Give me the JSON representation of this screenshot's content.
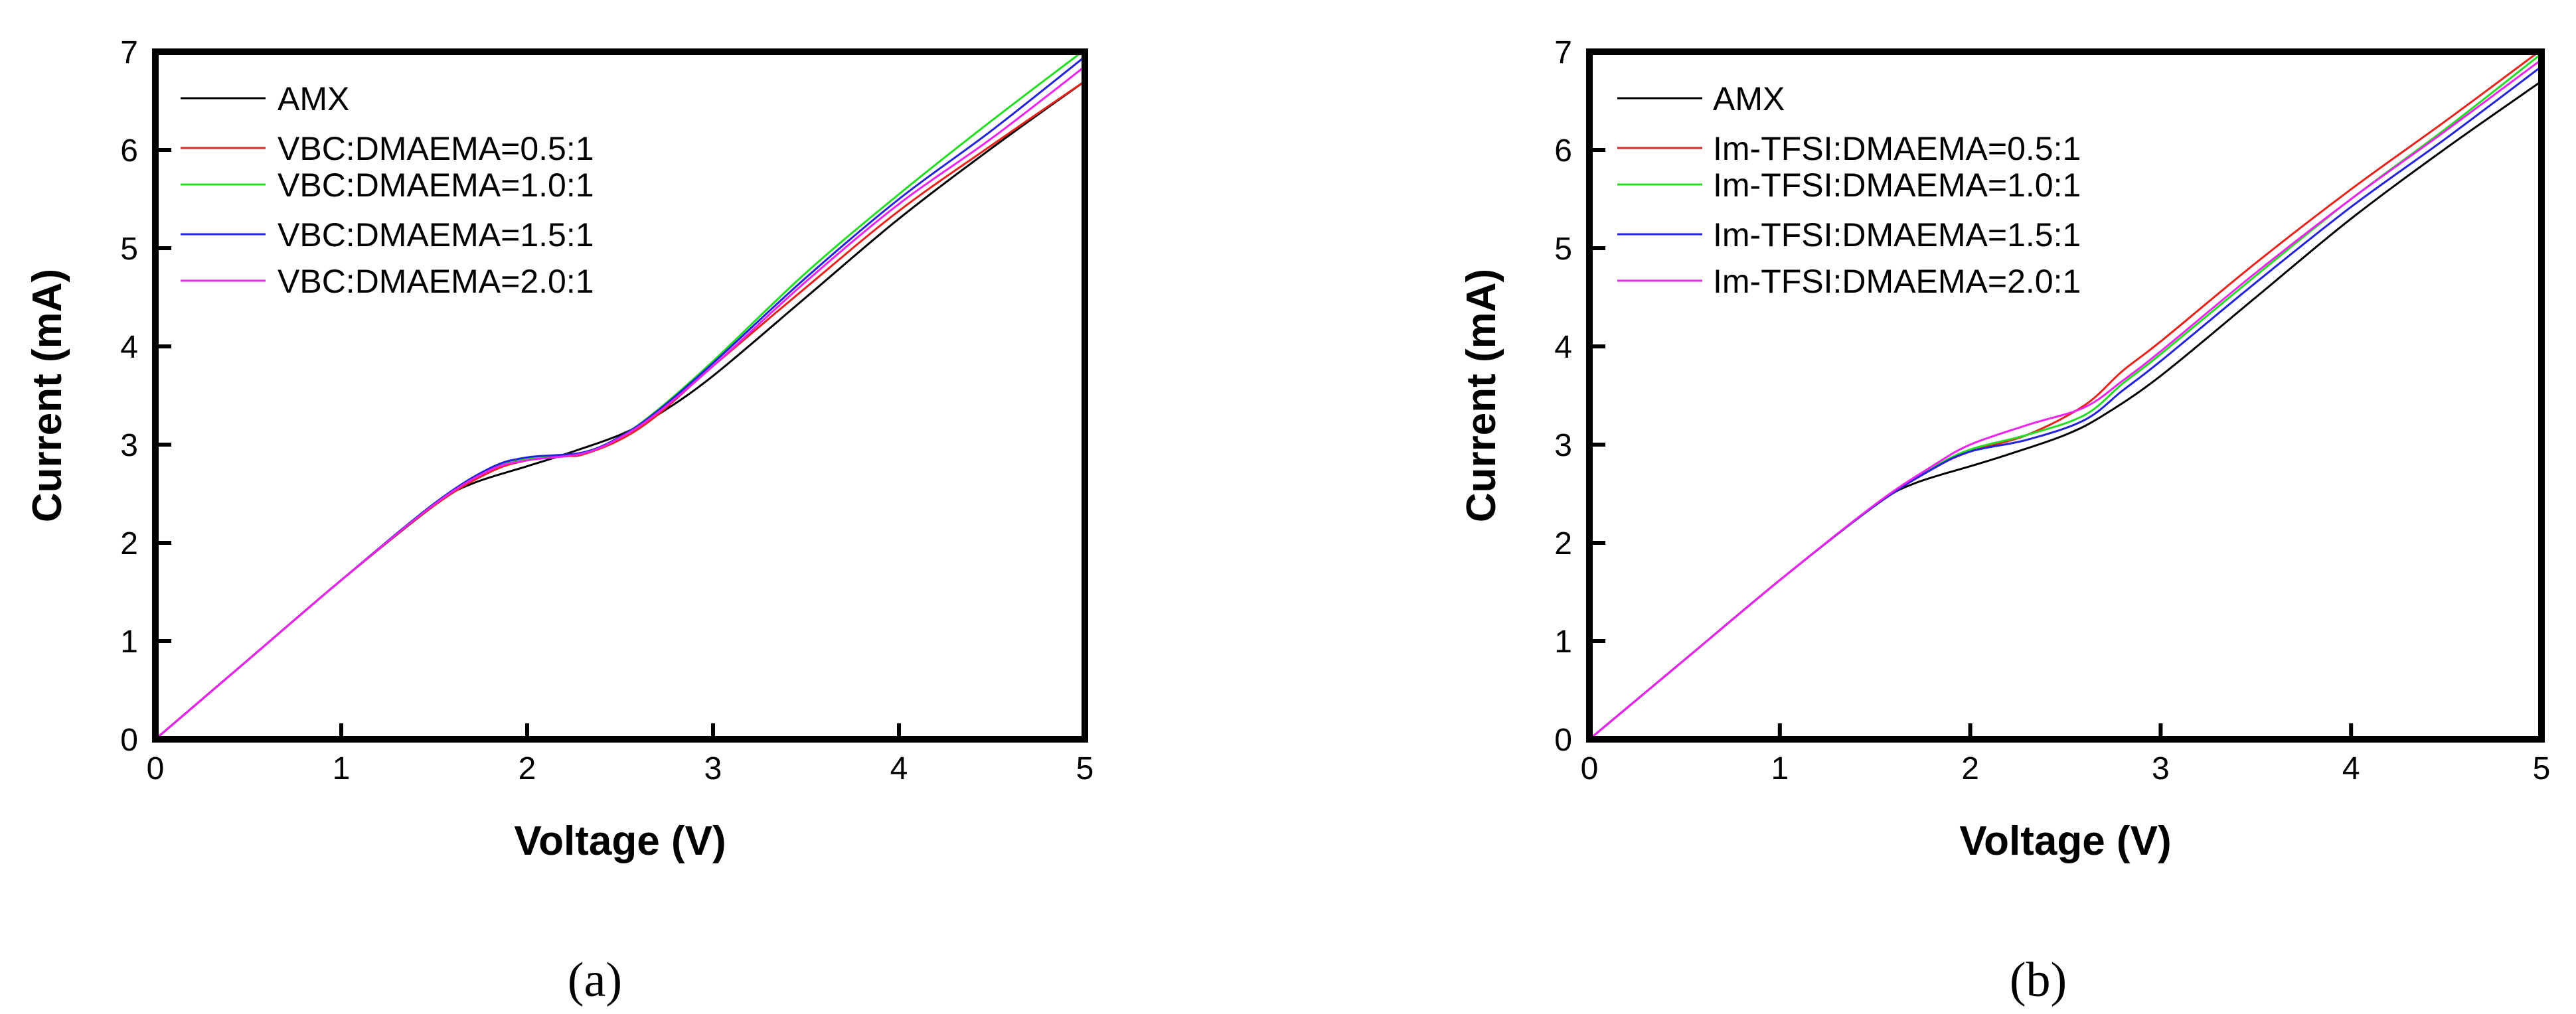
{
  "chart_data": [
    {
      "type": "line",
      "panel_label": "(a)",
      "xlabel": "Voltage (V)",
      "ylabel": "Current (mA)",
      "xlim": [
        0,
        5
      ],
      "ylim": [
        0,
        7
      ],
      "xticks": [
        0,
        1,
        2,
        3,
        4,
        5
      ],
      "yticks": [
        0,
        1,
        2,
        3,
        4,
        5,
        6,
        7
      ],
      "grid": false,
      "legend_position": "top-left",
      "series": [
        {
          "name": "AMX",
          "color": "#000000",
          "x": [
            0,
            0.5,
            1.0,
            1.5,
            1.7,
            2.0,
            2.2,
            2.5,
            2.7,
            3.0,
            3.5,
            4.0,
            4.5,
            5.0
          ],
          "y": [
            0,
            0.81,
            1.62,
            2.38,
            2.6,
            2.78,
            2.9,
            3.1,
            3.3,
            3.7,
            4.5,
            5.3,
            6.02,
            6.7
          ]
        },
        {
          "name": "VBC:DMAEMA=0.5:1",
          "color": "#e8221b",
          "x": [
            0,
            0.5,
            1.0,
            1.5,
            1.8,
            2.0,
            2.2,
            2.3,
            2.5,
            2.7,
            3.0,
            3.5,
            4.0,
            4.5,
            5.0
          ],
          "y": [
            0,
            0.81,
            1.62,
            2.38,
            2.72,
            2.84,
            2.88,
            2.9,
            3.05,
            3.3,
            3.8,
            4.6,
            5.38,
            6.05,
            6.7
          ]
        },
        {
          "name": "VBC:DMAEMA=1.0:1",
          "color": "#22dd22",
          "x": [
            0,
            0.5,
            1.0,
            1.5,
            1.8,
            2.0,
            2.3,
            2.5,
            2.7,
            3.0,
            3.5,
            4.0,
            4.5,
            5.0
          ],
          "y": [
            0,
            0.81,
            1.62,
            2.4,
            2.75,
            2.85,
            2.92,
            3.08,
            3.35,
            3.85,
            4.75,
            5.55,
            6.3,
            7.02
          ]
        },
        {
          "name": "VBC:DMAEMA=1.5:1",
          "color": "#2222dd",
          "x": [
            0,
            0.5,
            1.0,
            1.5,
            1.8,
            2.0,
            2.3,
            2.5,
            2.7,
            3.0,
            3.5,
            4.0,
            4.5,
            5.0
          ],
          "y": [
            0,
            0.81,
            1.62,
            2.4,
            2.76,
            2.87,
            2.92,
            3.08,
            3.34,
            3.83,
            4.7,
            5.5,
            6.2,
            6.95
          ]
        },
        {
          "name": "VBC:DMAEMA=2.0:1",
          "color": "#ee22ee",
          "x": [
            0,
            0.5,
            1.0,
            1.5,
            1.8,
            2.0,
            2.3,
            2.5,
            2.7,
            3.0,
            3.5,
            4.0,
            4.5,
            5.0
          ],
          "y": [
            0,
            0.81,
            1.62,
            2.39,
            2.74,
            2.84,
            2.91,
            3.07,
            3.32,
            3.8,
            4.66,
            5.45,
            6.12,
            6.85
          ]
        }
      ]
    },
    {
      "type": "line",
      "panel_label": "(b)",
      "xlabel": "Voltage (V)",
      "ylabel": "Current (mA)",
      "xlim": [
        0,
        5
      ],
      "ylim": [
        0,
        7
      ],
      "xticks": [
        0,
        1,
        2,
        3,
        4,
        5
      ],
      "yticks": [
        0,
        1,
        2,
        3,
        4,
        5,
        6,
        7
      ],
      "grid": false,
      "legend_position": "top-left",
      "series": [
        {
          "name": "AMX",
          "color": "#000000",
          "x": [
            0,
            0.5,
            1.0,
            1.5,
            1.7,
            2.0,
            2.2,
            2.5,
            2.7,
            3.0,
            3.5,
            4.0,
            4.5,
            5.0
          ],
          "y": [
            0,
            0.81,
            1.62,
            2.38,
            2.6,
            2.78,
            2.9,
            3.1,
            3.3,
            3.7,
            4.5,
            5.3,
            6.02,
            6.7
          ]
        },
        {
          "name": "Im-TFSI:DMAEMA=0.5:1",
          "color": "#e8221b",
          "x": [
            0,
            0.5,
            1.0,
            1.5,
            1.8,
            2.0,
            2.3,
            2.6,
            2.8,
            3.0,
            3.5,
            4.0,
            4.5,
            5.0
          ],
          "y": [
            0,
            0.81,
            1.62,
            2.38,
            2.75,
            2.93,
            3.1,
            3.4,
            3.75,
            4.05,
            4.85,
            5.6,
            6.3,
            7.02
          ]
        },
        {
          "name": "Im-TFSI:DMAEMA=1.0:1",
          "color": "#22dd22",
          "x": [
            0,
            0.5,
            1.0,
            1.5,
            1.8,
            2.0,
            2.3,
            2.6,
            2.8,
            3.0,
            3.5,
            4.0,
            4.5,
            5.0
          ],
          "y": [
            0,
            0.81,
            1.62,
            2.38,
            2.76,
            2.95,
            3.1,
            3.3,
            3.62,
            3.92,
            4.72,
            5.5,
            6.22,
            6.98
          ]
        },
        {
          "name": "Im-TFSI:DMAEMA=1.5:1",
          "color": "#2222dd",
          "x": [
            0,
            0.5,
            1.0,
            1.5,
            1.8,
            2.0,
            2.3,
            2.6,
            2.8,
            3.0,
            3.5,
            4.0,
            4.5,
            5.0
          ],
          "y": [
            0,
            0.81,
            1.62,
            2.38,
            2.75,
            2.93,
            3.05,
            3.25,
            3.55,
            3.85,
            4.65,
            5.42,
            6.12,
            6.85
          ]
        },
        {
          "name": "Im-TFSI:DMAEMA=2.0:1",
          "color": "#ee22ee",
          "x": [
            0,
            0.5,
            1.0,
            1.5,
            1.8,
            2.0,
            2.3,
            2.6,
            2.8,
            3.0,
            3.5,
            4.0,
            4.5,
            5.0
          ],
          "y": [
            0,
            0.81,
            1.62,
            2.39,
            2.78,
            3.0,
            3.2,
            3.38,
            3.65,
            3.95,
            4.75,
            5.5,
            6.2,
            6.92
          ]
        }
      ]
    }
  ]
}
